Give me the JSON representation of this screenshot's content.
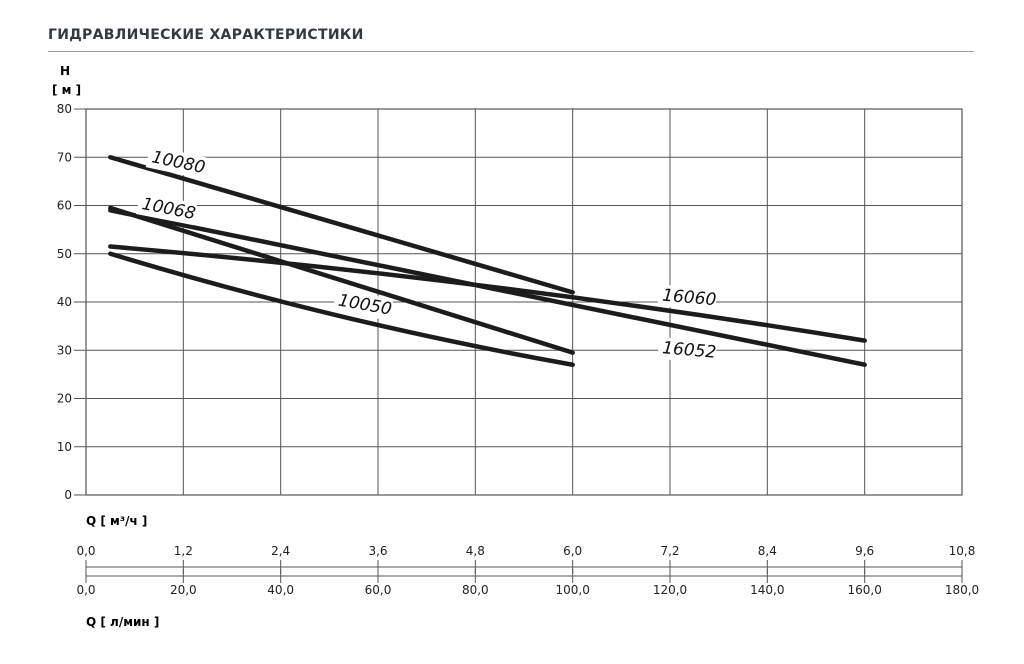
{
  "heading": "ГИДРАВЛИЧЕСКИЕ ХАРАКТЕРИСТИКИ",
  "chart_data": {
    "type": "line",
    "y_axis": {
      "label_line1": "H",
      "label_line2": "[ м ]",
      "ylim": [
        0,
        80
      ],
      "ticks": [
        "0",
        "10",
        "20",
        "30",
        "40",
        "50",
        "60",
        "70",
        "80"
      ]
    },
    "x_axis_primary": {
      "label": "Q [ м³/ч ]",
      "xlim": [
        0,
        10.8
      ],
      "ticks": [
        "0,0",
        "1,2",
        "2,4",
        "3,6",
        "4,8",
        "6,0",
        "7,2",
        "8,4",
        "9,6",
        "10,8"
      ]
    },
    "x_axis_secondary": {
      "label": "Q [ л/мин ]",
      "xlim": [
        0,
        180
      ],
      "ticks": [
        "0,0",
        "20,0",
        "40,0",
        "60,0",
        "80,0",
        "100,0",
        "120,0",
        "140,0",
        "160,0",
        "180,0"
      ]
    },
    "grid": true,
    "series": [
      {
        "name": "10080",
        "x": [
          0.3,
          6.0
        ],
        "y": [
          70,
          42
        ],
        "mid": 0
      },
      {
        "name": "10068",
        "x": [
          0.3,
          6.0
        ],
        "y": [
          59.5,
          29.5
        ],
        "mid": 0
      },
      {
        "name": "10050",
        "x": [
          0.3,
          6.0
        ],
        "y": [
          50,
          27
        ],
        "mid": -1.5
      },
      {
        "name": "16060",
        "x": [
          0.3,
          9.6
        ],
        "y": [
          51.5,
          32
        ],
        "mid": 1.5
      },
      {
        "name": "16052",
        "x": [
          0.3,
          9.6
        ],
        "y": [
          59,
          27
        ],
        "mid": 0
      }
    ],
    "curve_labels": [
      {
        "text": "10080",
        "x": 0.8,
        "y": 69,
        "angle": 12
      },
      {
        "text": "10068",
        "x": 0.68,
        "y": 59.3,
        "angle": 11
      },
      {
        "text": "10050",
        "x": 3.1,
        "y": 39.3,
        "angle": 10
      },
      {
        "text": "16060",
        "x": 7.1,
        "y": 40.3,
        "angle": 5
      },
      {
        "text": "16052",
        "x": 7.1,
        "y": 29.4,
        "angle": 5
      }
    ]
  }
}
